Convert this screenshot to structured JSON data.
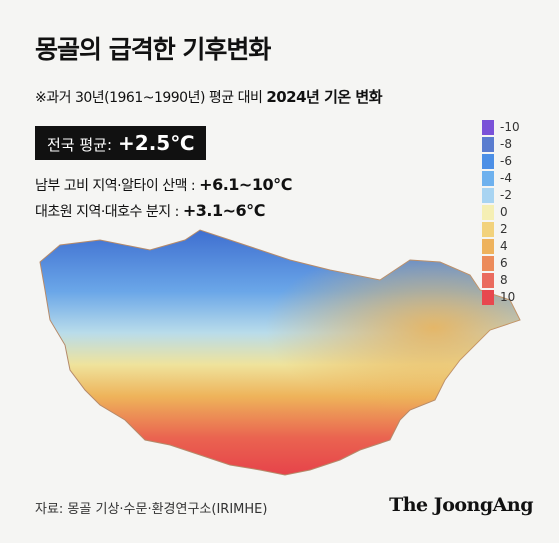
{
  "header": {
    "title": "몽골의 급격한 기후변화",
    "subtitle": "※과거 30년(1961~1990년) 평균 대비",
    "subtitle_bold": "2024년 기온 변화"
  },
  "stats": [
    {
      "label": "전국 평균:",
      "value": "+2.5℃"
    },
    {
      "label": "남부 고비 지역·알타이 산맥 :",
      "value": "+6.1~10℃"
    },
    {
      "label": "대초원 지역·대호수 분지 :",
      "value": "+3.1~6℃"
    }
  ],
  "legend": {
    "items": [
      {
        "label": -10,
        "color": "#7a52d8"
      },
      {
        "label": -8,
        "color": "#5a7ccf"
      },
      {
        "label": -6,
        "color": "#4c8fe6"
      },
      {
        "label": -4,
        "color": "#6eb1ee"
      },
      {
        "label": -2,
        "color": "#a8d4f2"
      },
      {
        "label": 0,
        "color": "#f5efb4"
      },
      {
        "label": 2,
        "color": "#f2d27c"
      },
      {
        "label": 4,
        "color": "#eeb25c"
      },
      {
        "label": 6,
        "color": "#ec8b5a"
      },
      {
        "label": 8,
        "color": "#ea6b5e"
      },
      {
        "label": 10,
        "color": "#e8474e"
      }
    ]
  },
  "footer": {
    "source": "자료: 몽골 기상·수문·환경연구소(IRIMHE)",
    "brand": "The JoongAng"
  }
}
